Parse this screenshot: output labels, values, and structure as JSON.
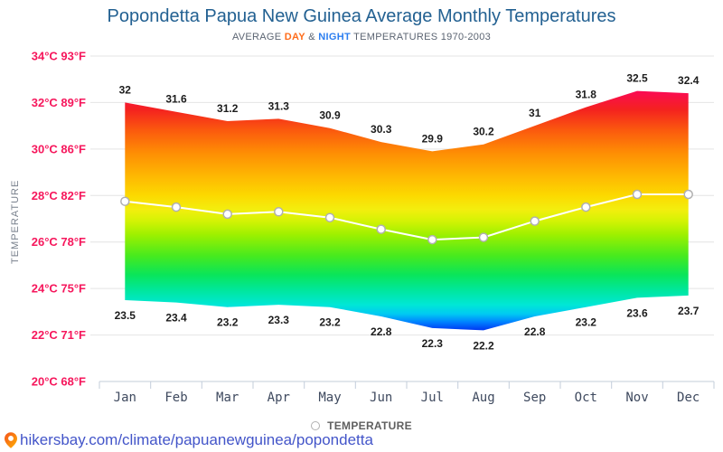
{
  "header": {
    "title": "Popondetta Papua New Guinea Average Monthly Temperatures",
    "subtitle_prefix": "AVERAGE ",
    "subtitle_day": "DAY",
    "subtitle_amp": " & ",
    "subtitle_night": "NIGHT",
    "subtitle_suffix": " TEMPERATURES 1970-2003"
  },
  "y_axis": {
    "title": "TEMPERATURE",
    "tick_labels": [
      "34°C 93°F",
      "32°C 89°F",
      "30°C 86°F",
      "28°C 82°F",
      "26°C 78°F",
      "24°C 75°F",
      "22°C 71°F",
      "20°C 68°F"
    ]
  },
  "legend": {
    "label": "TEMPERATURE"
  },
  "footer": {
    "url": "hikersbay.com/climate/papuanewguinea/popondetta"
  },
  "colors": {
    "title-color": "#236192",
    "subtitle-color": "#5b6472",
    "day-color": "#ff6c1a",
    "night-color": "#2d7ff0",
    "ytitle-color": "#79818d",
    "ylabel-color": "#f6175c",
    "xlabel-color": "#3f4a5f",
    "grid-color": "#e4e4e4",
    "axis-color": "#c3cdda",
    "value-label-color": "#1c1c1c",
    "legend-color": "#5f5f5f",
    "url-color": "#4355c9",
    "ring-color": "#b0b0b0",
    "avg-line-color": "#ffffff"
  },
  "chart_data": {
    "type": "area",
    "title": "Popondetta Papua New Guinea Average Monthly Temperatures",
    "subtitle": "AVERAGE DAY & NIGHT TEMPERATURES 1970-2003",
    "categories": [
      "Jan",
      "Feb",
      "Mar",
      "Apr",
      "May",
      "Jun",
      "Jul",
      "Aug",
      "Sep",
      "Oct",
      "Nov",
      "Dec"
    ],
    "series": [
      {
        "name": "DAY",
        "values": [
          32,
          31.6,
          31.2,
          31.3,
          30.9,
          30.3,
          29.9,
          30.2,
          31,
          31.8,
          32.5,
          32.4
        ]
      },
      {
        "name": "NIGHT",
        "values": [
          23.5,
          23.4,
          23.2,
          23.3,
          23.2,
          22.8,
          22.3,
          22.2,
          22.8,
          23.2,
          23.6,
          23.7
        ]
      },
      {
        "name": "AVERAGE",
        "values": [
          27.75,
          27.5,
          27.2,
          27.3,
          27.05,
          26.55,
          26.1,
          26.2,
          26.9,
          27.5,
          28.05,
          28.05
        ]
      }
    ],
    "ylabel": "TEMPERATURE",
    "ylim": [
      20,
      34
    ],
    "y_tick_step": 2,
    "grid": true,
    "legend_position": "bottom",
    "gradient_stops": [
      {
        "t": 32.5,
        "color": "#fb0a54"
      },
      {
        "t": 31.7,
        "color": "#f4221f"
      },
      {
        "t": 30.8,
        "color": "#fb5a0e"
      },
      {
        "t": 29.8,
        "color": "#fe8f04"
      },
      {
        "t": 28.8,
        "color": "#feb902"
      },
      {
        "t": 28.0,
        "color": "#fcd900"
      },
      {
        "t": 27.4,
        "color": "#f3ee0e"
      },
      {
        "t": 26.9,
        "color": "#d3f304"
      },
      {
        "t": 26.3,
        "color": "#9cf000"
      },
      {
        "t": 25.4,
        "color": "#47ea1e"
      },
      {
        "t": 24.6,
        "color": "#0ae559"
      },
      {
        "t": 23.9,
        "color": "#00e79f"
      },
      {
        "t": 23.3,
        "color": "#00e7d6"
      },
      {
        "t": 22.9,
        "color": "#00c9f2"
      },
      {
        "t": 22.55,
        "color": "#0080ff"
      },
      {
        "t": 22.2,
        "color": "#0037f2"
      }
    ]
  }
}
